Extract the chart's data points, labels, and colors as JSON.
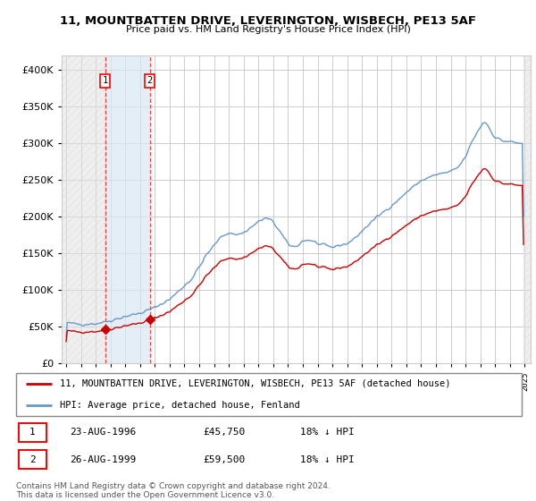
{
  "title": "11, MOUNTBATTEN DRIVE, LEVERINGTON, WISBECH, PE13 5AF",
  "subtitle": "Price paid vs. HM Land Registry's House Price Index (HPI)",
  "legend_line1": "11, MOUNTBATTEN DRIVE, LEVERINGTON, WISBECH, PE13 5AF (detached house)",
  "legend_line2": "HPI: Average price, detached house, Fenland",
  "footer": "Contains HM Land Registry data © Crown copyright and database right 2024.\nThis data is licensed under the Open Government Licence v3.0.",
  "transaction1_date": "23-AUG-1996",
  "transaction1_price": 45750,
  "transaction1_hpi_text": "18% ↓ HPI",
  "transaction2_date": "26-AUG-1999",
  "transaction2_price": 59500,
  "transaction2_hpi_text": "18% ↓ HPI",
  "hpi_color": "#6699cc",
  "price_color": "#cc0000",
  "background_color": "#ffffff",
  "grid_color": "#cccccc",
  "ylim": [
    0,
    420000
  ],
  "yticks": [
    0,
    50000,
    100000,
    150000,
    200000,
    250000,
    300000,
    350000,
    400000
  ],
  "xlim_start": 1993.7,
  "xlim_end": 2025.4,
  "transaction1_year": 1996.64,
  "transaction2_year": 1999.65
}
